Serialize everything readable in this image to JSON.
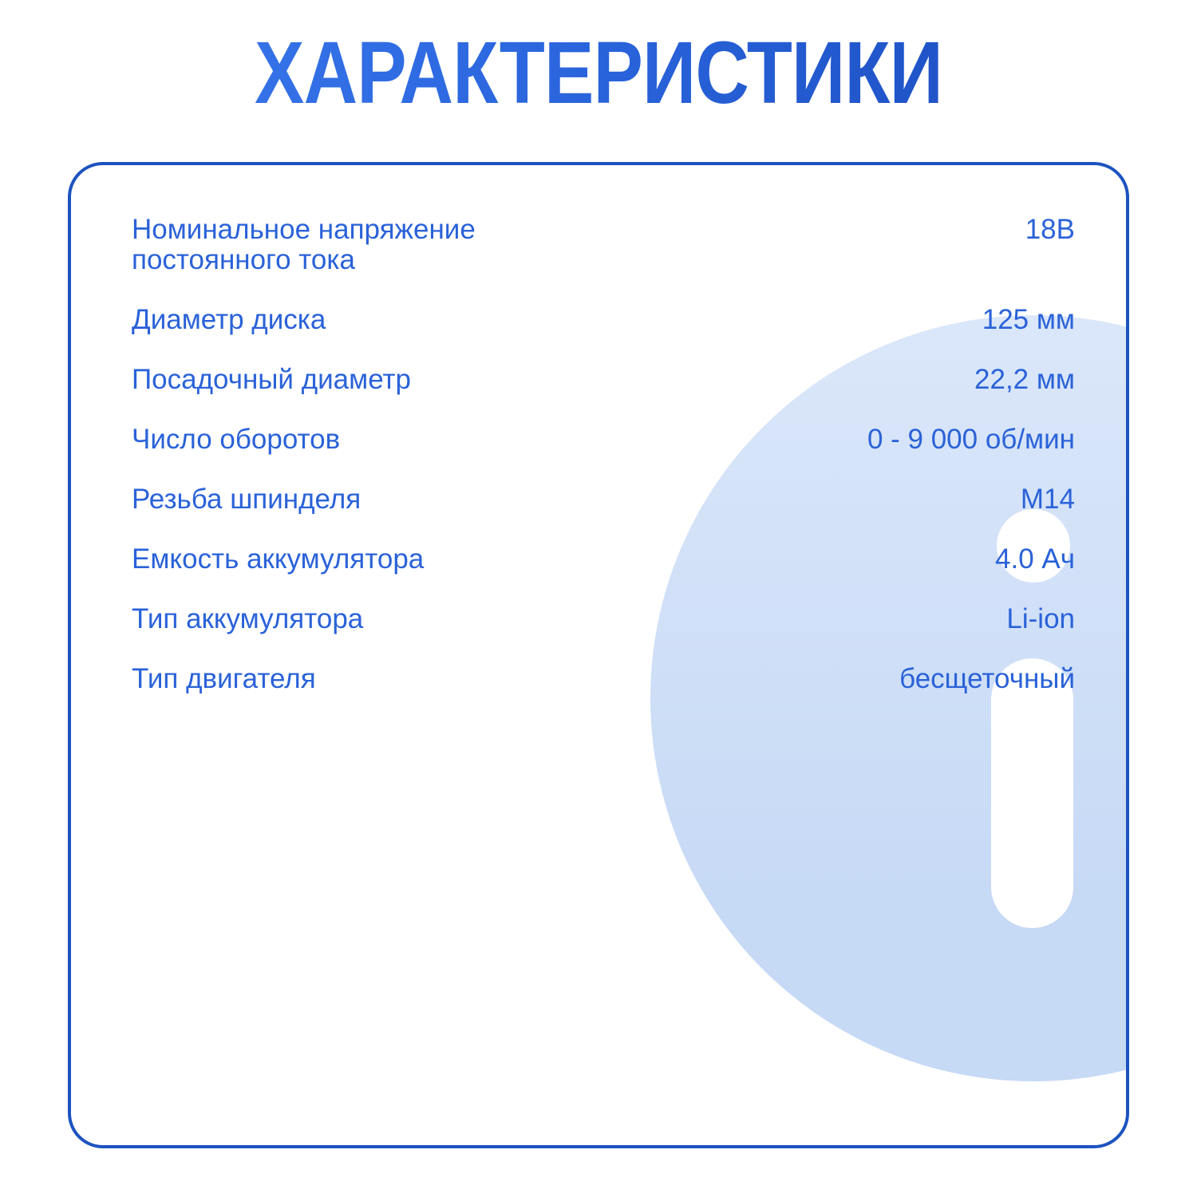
{
  "title": "ХАРАКТЕРИСТИКИ",
  "colors": {
    "title_gradient_start": "#3A78EC",
    "title_gradient_end": "#1B4CBE",
    "text_blue": "#2A62D8",
    "card_border_blue": "#1D53C0",
    "disc_fill_light": "#DBE7FA",
    "disc_fill_dark": "#C6D9F5",
    "background": "#FFFFFF"
  },
  "specs": {
    "rows": [
      {
        "label": "Номинальное напряжение постоянного тока",
        "value": "18В"
      },
      {
        "label": "Диаметр диска",
        "value": "125 мм"
      },
      {
        "label": "Посадочный диаметр",
        "value": "22,2 мм"
      },
      {
        "label": "Число оборотов",
        "value": "0 - 9 000 об/мин"
      },
      {
        "label": "Резьба шпинделя",
        "value": "М14"
      },
      {
        "label": "Емкость аккумулятора",
        "value": "4.0 Ач"
      },
      {
        "label": "Тип аккумулятора",
        "value": "Li-ion"
      },
      {
        "label": "Тип двигателя",
        "value": "бесщеточный"
      }
    ]
  },
  "decor": {
    "illustration": "grinding-disc-watermark"
  }
}
